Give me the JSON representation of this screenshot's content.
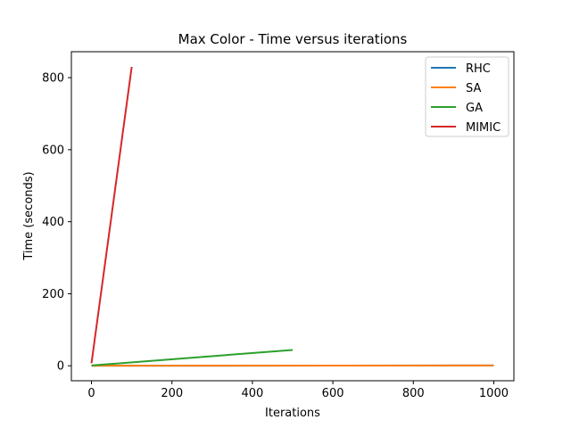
{
  "chart_data": {
    "type": "line",
    "title": "Max Color - Time versus iterations",
    "xlabel": "Iterations",
    "ylabel": "Time (seconds)",
    "xlim": [
      -50,
      1050
    ],
    "ylim": [
      -41.5,
      872
    ],
    "xticks": [
      0,
      200,
      400,
      600,
      800,
      1000
    ],
    "yticks": [
      0,
      200,
      400,
      600,
      800
    ],
    "grid": false,
    "legend_position": "top-right",
    "series": [
      {
        "name": "RHC",
        "color": "#1f77b4",
        "x": [
          0,
          1000
        ],
        "y": [
          0.2,
          0.8
        ]
      },
      {
        "name": "SA",
        "color": "#ff7f0e",
        "x": [
          0,
          1000
        ],
        "y": [
          0.2,
          0.8
        ]
      },
      {
        "name": "GA",
        "color": "#2ca02c",
        "x": [
          0,
          500
        ],
        "y": [
          1,
          44
        ]
      },
      {
        "name": "MIMIC",
        "color": "#d62728",
        "x": [
          0,
          100
        ],
        "y": [
          7,
          830
        ]
      }
    ]
  }
}
